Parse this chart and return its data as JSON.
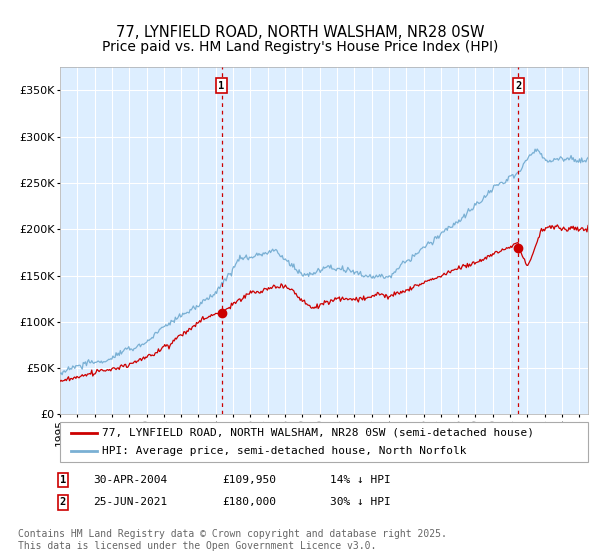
{
  "title": "77, LYNFIELD ROAD, NORTH WALSHAM, NR28 0SW",
  "subtitle": "Price paid vs. HM Land Registry's House Price Index (HPI)",
  "ytick_vals": [
    0,
    50000,
    100000,
    150000,
    200000,
    250000,
    300000,
    350000
  ],
  "ylim": [
    0,
    375000
  ],
  "xlim_start": 1995.0,
  "xlim_end": 2025.5,
  "marker1_x": 2004.33,
  "marker1_y": 109950,
  "marker2_x": 2021.48,
  "marker2_y": 180000,
  "marker1_date": "30-APR-2004",
  "marker1_price": "£109,950",
  "marker1_hpi": "14% ↓ HPI",
  "marker2_date": "25-JUN-2021",
  "marker2_price": "£180,000",
  "marker2_hpi": "30% ↓ HPI",
  "legend_line1": "77, LYNFIELD ROAD, NORTH WALSHAM, NR28 0SW (semi-detached house)",
  "legend_line2": "HPI: Average price, semi-detached house, North Norfolk",
  "footnote": "Contains HM Land Registry data © Crown copyright and database right 2025.\nThis data is licensed under the Open Government Licence v3.0.",
  "line_color_price": "#cc0000",
  "line_color_hpi": "#7ab0d4",
  "plot_bg": "#ddeeff",
  "grid_color": "#ffffff",
  "box_color": "#cc0000",
  "title_fontsize": 10.5,
  "tick_fontsize": 8,
  "legend_fontsize": 8,
  "footnote_fontsize": 7
}
